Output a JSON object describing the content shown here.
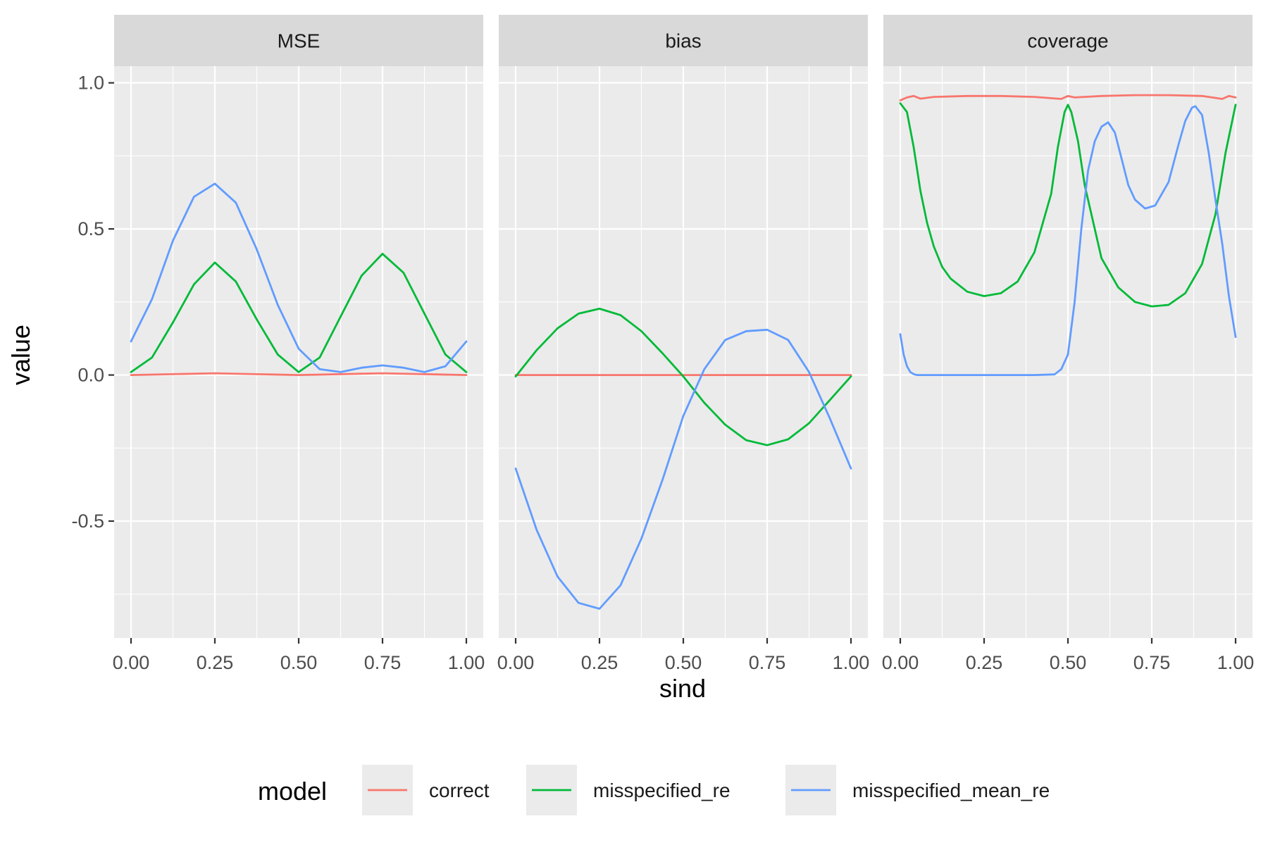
{
  "chart_data": {
    "type": "line",
    "facets": [
      "MSE",
      "bias",
      "coverage"
    ],
    "xlabel": "sind",
    "ylabel": "value",
    "xlim": [
      0,
      1
    ],
    "ylim": [
      -0.9,
      1.0
    ],
    "x_ticks": [
      0,
      0.25,
      0.5,
      0.75,
      1
    ],
    "x_tick_labels": [
      "0.00",
      "0.25",
      "0.50",
      "0.75",
      "1.00"
    ],
    "y_ticks": [
      1.0,
      0.5,
      0.0,
      -0.5
    ],
    "y_tick_labels": [
      "1.0",
      "0.5",
      "0.0",
      "-0.5"
    ],
    "grid": true,
    "legend": {
      "title": "model",
      "position": "bottom",
      "entries": [
        {
          "name": "correct",
          "color": "#F8766D"
        },
        {
          "name": "misspecified_re",
          "color": "#00BA38"
        },
        {
          "name": "misspecified_mean_re",
          "color": "#619CFF"
        }
      ]
    },
    "panels": [
      {
        "facet": "MSE",
        "series": [
          {
            "name": "correct",
            "x": [
              0,
              0.25,
              0.5,
              0.75,
              1
            ],
            "y": [
              0.0,
              0.006,
              0.0,
              0.006,
              0.0
            ]
          },
          {
            "name": "misspecified_re",
            "x": [
              0,
              0.0625,
              0.125,
              0.1875,
              0.25,
              0.3125,
              0.375,
              0.4375,
              0.5,
              0.5625,
              0.625,
              0.6875,
              0.75,
              0.8125,
              0.875,
              0.9375,
              1
            ],
            "y": [
              0.01,
              0.06,
              0.18,
              0.31,
              0.385,
              0.32,
              0.19,
              0.07,
              0.01,
              0.06,
              0.2,
              0.34,
              0.415,
              0.35,
              0.21,
              0.07,
              0.01
            ]
          },
          {
            "name": "misspecified_mean_re",
            "x": [
              0,
              0.0625,
              0.125,
              0.1875,
              0.25,
              0.3125,
              0.375,
              0.4375,
              0.5,
              0.5625,
              0.625,
              0.6875,
              0.75,
              0.8125,
              0.875,
              0.9375,
              1
            ],
            "y": [
              0.115,
              0.26,
              0.46,
              0.61,
              0.655,
              0.59,
              0.43,
              0.24,
              0.09,
              0.02,
              0.01,
              0.025,
              0.033,
              0.025,
              0.01,
              0.03,
              0.115
            ]
          }
        ]
      },
      {
        "facet": "bias",
        "series": [
          {
            "name": "correct",
            "x": [
              0,
              0.25,
              0.5,
              0.75,
              1
            ],
            "y": [
              0.0,
              0.0,
              0.0,
              0.0,
              0.0
            ]
          },
          {
            "name": "misspecified_re",
            "x": [
              0,
              0.0625,
              0.125,
              0.1875,
              0.25,
              0.3125,
              0.375,
              0.4375,
              0.5,
              0.5625,
              0.625,
              0.6875,
              0.75,
              0.8125,
              0.875,
              0.9375,
              1
            ],
            "y": [
              -0.005,
              0.085,
              0.16,
              0.21,
              0.227,
              0.205,
              0.15,
              0.075,
              -0.005,
              -0.095,
              -0.17,
              -0.223,
              -0.24,
              -0.22,
              -0.165,
              -0.085,
              -0.005
            ]
          },
          {
            "name": "misspecified_mean_re",
            "x": [
              0,
              0.0625,
              0.125,
              0.1875,
              0.25,
              0.3125,
              0.375,
              0.4375,
              0.5,
              0.5625,
              0.625,
              0.6875,
              0.75,
              0.8125,
              0.875,
              0.9375,
              1
            ],
            "y": [
              -0.32,
              -0.53,
              -0.69,
              -0.78,
              -0.8,
              -0.72,
              -0.56,
              -0.36,
              -0.14,
              0.02,
              0.12,
              0.15,
              0.155,
              0.12,
              0.01,
              -0.15,
              -0.32
            ]
          }
        ]
      },
      {
        "facet": "coverage",
        "series": [
          {
            "name": "correct",
            "x": [
              0,
              0.02,
              0.04,
              0.06,
              0.1,
              0.2,
              0.3,
              0.4,
              0.48,
              0.5,
              0.52,
              0.6,
              0.7,
              0.8,
              0.9,
              0.96,
              0.98,
              1
            ],
            "y": [
              0.94,
              0.95,
              0.955,
              0.946,
              0.952,
              0.955,
              0.955,
              0.952,
              0.945,
              0.955,
              0.95,
              0.955,
              0.958,
              0.958,
              0.955,
              0.945,
              0.955,
              0.95
            ]
          },
          {
            "name": "misspecified_re",
            "x": [
              0,
              0.02,
              0.04,
              0.06,
              0.08,
              0.1,
              0.125,
              0.15,
              0.2,
              0.25,
              0.3,
              0.35,
              0.4,
              0.45,
              0.47,
              0.49,
              0.5,
              0.51,
              0.53,
              0.55,
              0.6,
              0.65,
              0.7,
              0.75,
              0.8,
              0.85,
              0.9,
              0.94,
              0.97,
              1
            ],
            "y": [
              0.93,
              0.9,
              0.78,
              0.63,
              0.52,
              0.44,
              0.37,
              0.33,
              0.285,
              0.27,
              0.28,
              0.32,
              0.42,
              0.62,
              0.78,
              0.9,
              0.925,
              0.9,
              0.8,
              0.65,
              0.4,
              0.3,
              0.25,
              0.235,
              0.24,
              0.28,
              0.38,
              0.55,
              0.76,
              0.925
            ]
          },
          {
            "name": "misspecified_mean_re",
            "x": [
              0,
              0.01,
              0.02,
              0.03,
              0.04,
              0.05,
              0.1,
              0.2,
              0.3,
              0.4,
              0.46,
              0.48,
              0.5,
              0.52,
              0.54,
              0.56,
              0.58,
              0.6,
              0.62,
              0.64,
              0.66,
              0.68,
              0.7,
              0.73,
              0.76,
              0.8,
              0.83,
              0.85,
              0.87,
              0.88,
              0.9,
              0.92,
              0.94,
              0.96,
              0.98,
              1
            ],
            "y": [
              0.14,
              0.07,
              0.03,
              0.01,
              0.003,
              0.0,
              0.0,
              0.0,
              0.0,
              0.0,
              0.002,
              0.02,
              0.07,
              0.25,
              0.5,
              0.7,
              0.8,
              0.85,
              0.865,
              0.83,
              0.74,
              0.65,
              0.6,
              0.57,
              0.58,
              0.66,
              0.79,
              0.87,
              0.915,
              0.92,
              0.89,
              0.76,
              0.6,
              0.45,
              0.27,
              0.13
            ]
          }
        ]
      }
    ]
  }
}
